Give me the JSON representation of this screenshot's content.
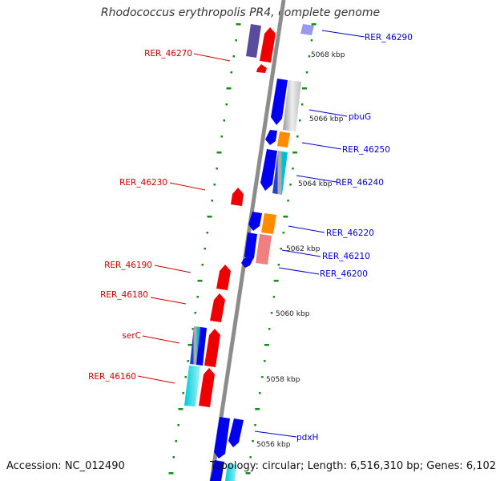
{
  "title": "Rhodococcus erythropolis PR4, complete genome",
  "accession_text": "Accession: NC_012490",
  "stats_text": "Topology: circular; Length: 6,516,310 bp; Genes: 6,102",
  "colors": {
    "backbone": "#888888",
    "forward_gene_label": "#0000cc",
    "reverse_gene_label": "#cc0000",
    "tick": "#1a8a1a",
    "blue": "#0000ee",
    "red": "#ee0000",
    "orange": "#ff8c00",
    "cyan": "#00d8e8",
    "pink": "#f08080",
    "lavender": "#9999ee",
    "purple": "#5a4aa0",
    "grey": "#c8c8c8"
  },
  "kbp_labels": [
    "5056 kbp",
    "5058 kbp",
    "5060 kbp",
    "5062 kbp",
    "5064 kbp",
    "5066 kbp",
    "5068 kbp"
  ],
  "forward_genes": [
    "RER_46290",
    "pbuG",
    "RER_46250",
    "RER_46240",
    "RER_46220",
    "RER_46210",
    "RER_46200",
    "pdxH"
  ],
  "reverse_genes": [
    "RER_46270",
    "RER_46230",
    "RER_46190",
    "RER_46180",
    "serC",
    "RER_46160"
  ]
}
